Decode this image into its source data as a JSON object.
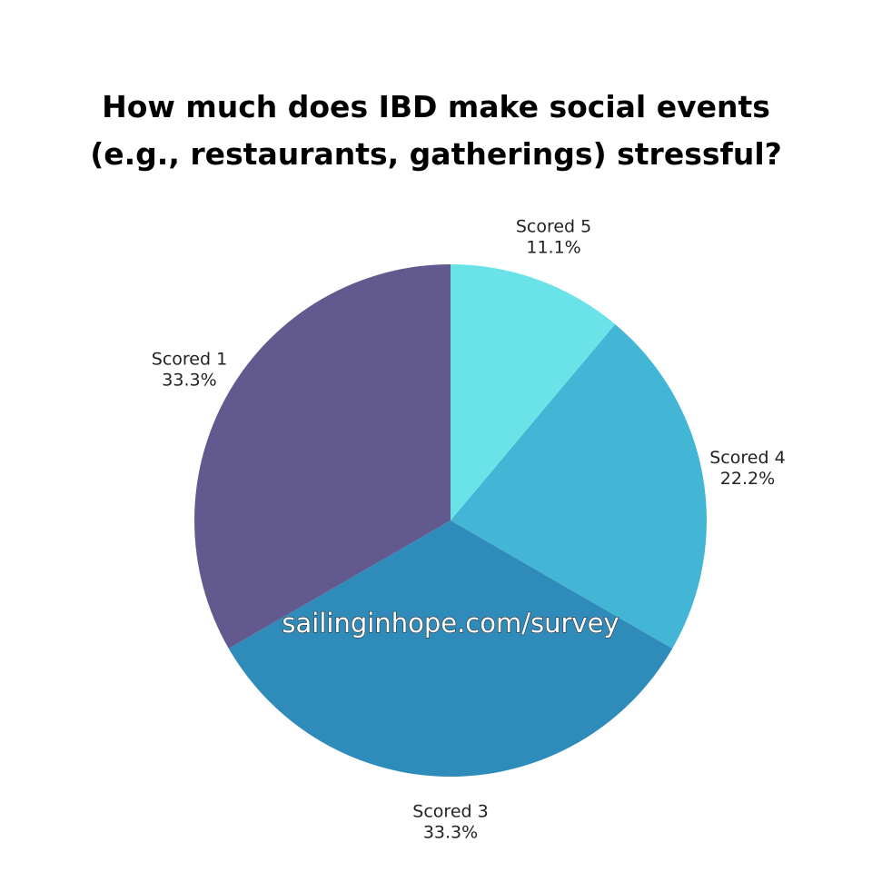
{
  "chart_data": {
    "type": "pie",
    "title": "How much does IBD make social events (e.g., restaurants, gatherings) stressful?",
    "categories": [
      "Scored 5",
      "Scored 4",
      "Scored 3",
      "Scored 1"
    ],
    "values": [
      11.1,
      22.2,
      33.3,
      33.3
    ],
    "value_labels": [
      "11.1%",
      "22.2%",
      "33.3%",
      "33.3%"
    ],
    "colors": [
      "#6ae3e8",
      "#43b6d6",
      "#2e8bba",
      "#625a8f"
    ],
    "annotation": "sailinginhope.com/survey"
  }
}
